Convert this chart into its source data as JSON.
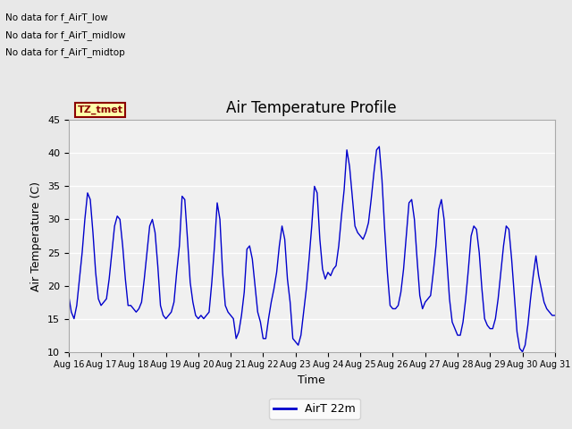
{
  "title": "Air Temperature Profile",
  "xlabel": "Time",
  "ylabel": "Air Temperature (C)",
  "ylim": [
    10,
    45
  ],
  "yticks": [
    10,
    15,
    20,
    25,
    30,
    35,
    40,
    45
  ],
  "line_color": "#0000cc",
  "legend_label": "AirT 22m",
  "no_data_lines": [
    "No data for f_AirT_low",
    "No data for f_AirT_midlow",
    "No data for f_AirT_midtop"
  ],
  "tz_tmet_label": "TZ_tmet",
  "bg_color": "#e8e8e8",
  "plot_bg_color": "#f0f0f0",
  "x_tick_labels": [
    "Aug 16",
    "Aug 17",
    "Aug 18",
    "Aug 19",
    "Aug 20",
    "Aug 21",
    "Aug 22",
    "Aug 23",
    "Aug 24",
    "Aug 25",
    "Aug 26",
    "Aug 27",
    "Aug 28",
    "Aug 29",
    "Aug 30",
    "Aug 31"
  ],
  "time_values": [
    0.0,
    0.083,
    0.167,
    0.25,
    0.333,
    0.417,
    0.5,
    0.583,
    0.667,
    0.75,
    0.833,
    0.917,
    1.0,
    1.083,
    1.167,
    1.25,
    1.333,
    1.417,
    1.5,
    1.583,
    1.667,
    1.75,
    1.833,
    1.917,
    2.0,
    2.083,
    2.167,
    2.25,
    2.333,
    2.417,
    2.5,
    2.583,
    2.667,
    2.75,
    2.833,
    2.917,
    3.0,
    3.083,
    3.167,
    3.25,
    3.333,
    3.417,
    3.5,
    3.583,
    3.667,
    3.75,
    3.833,
    3.917,
    4.0,
    4.083,
    4.167,
    4.25,
    4.333,
    4.417,
    4.5,
    4.583,
    4.667,
    4.75,
    4.833,
    4.917,
    5.0,
    5.083,
    5.167,
    5.25,
    5.333,
    5.417,
    5.5,
    5.583,
    5.667,
    5.75,
    5.833,
    5.917,
    6.0,
    6.083,
    6.167,
    6.25,
    6.333,
    6.417,
    6.5,
    6.583,
    6.667,
    6.75,
    6.833,
    6.917,
    7.0,
    7.083,
    7.167,
    7.25,
    7.333,
    7.417,
    7.5,
    7.583,
    7.667,
    7.75,
    7.833,
    7.917,
    8.0,
    8.083,
    8.167,
    8.25,
    8.333,
    8.417,
    8.5,
    8.583,
    8.667,
    8.75,
    8.833,
    8.917,
    9.0,
    9.083,
    9.167,
    9.25,
    9.333,
    9.417,
    9.5,
    9.583,
    9.667,
    9.75,
    9.833,
    9.917,
    10.0,
    10.083,
    10.167,
    10.25,
    10.333,
    10.417,
    10.5,
    10.583,
    10.667,
    10.75,
    10.833,
    10.917,
    11.0,
    11.083,
    11.167,
    11.25,
    11.333,
    11.417,
    11.5,
    11.583,
    11.667,
    11.75,
    11.833,
    11.917,
    12.0,
    12.083,
    12.167,
    12.25,
    12.333,
    12.417,
    12.5,
    12.583,
    12.667,
    12.75,
    12.833,
    12.917,
    13.0,
    13.083,
    13.167,
    13.25,
    13.333,
    13.417,
    13.5,
    13.583,
    13.667,
    13.75,
    13.833,
    13.917,
    14.0,
    14.083,
    14.167,
    14.25,
    14.333,
    14.417,
    14.5,
    14.583,
    14.667,
    14.75,
    14.833,
    14.917,
    15.0
  ],
  "temp_values": [
    18.5,
    16.0,
    15.0,
    17.0,
    21.0,
    25.0,
    30.0,
    34.0,
    33.0,
    28.0,
    22.0,
    18.0,
    17.0,
    17.5,
    18.0,
    21.0,
    25.0,
    29.0,
    30.5,
    30.0,
    26.0,
    21.0,
    17.0,
    17.0,
    16.5,
    16.0,
    16.5,
    17.5,
    21.0,
    25.0,
    29.0,
    30.0,
    28.0,
    23.0,
    17.0,
    15.5,
    15.0,
    15.5,
    16.0,
    17.5,
    22.0,
    26.0,
    33.5,
    33.0,
    27.0,
    20.5,
    17.5,
    15.5,
    15.0,
    15.5,
    15.0,
    15.5,
    16.0,
    20.5,
    26.0,
    32.5,
    30.0,
    22.0,
    17.0,
    16.0,
    15.5,
    15.0,
    12.0,
    13.0,
    15.5,
    19.0,
    25.5,
    26.0,
    24.0,
    20.0,
    16.0,
    14.5,
    12.0,
    12.0,
    15.0,
    17.5,
    19.5,
    22.0,
    26.0,
    29.0,
    27.0,
    21.0,
    17.5,
    12.0,
    11.5,
    11.0,
    12.5,
    16.0,
    19.5,
    24.0,
    29.0,
    35.0,
    34.0,
    27.0,
    22.5,
    21.0,
    22.0,
    21.5,
    22.5,
    23.0,
    26.0,
    30.5,
    34.5,
    40.5,
    38.0,
    33.5,
    29.0,
    28.0,
    27.5,
    27.0,
    28.0,
    29.5,
    33.0,
    37.0,
    40.5,
    41.0,
    36.0,
    28.5,
    22.0,
    17.0,
    16.5,
    16.5,
    17.0,
    19.0,
    22.5,
    27.5,
    32.5,
    33.0,
    30.0,
    24.0,
    18.5,
    16.5,
    17.5,
    18.0,
    18.5,
    22.0,
    26.0,
    31.5,
    33.0,
    30.0,
    24.0,
    18.0,
    14.5,
    13.5,
    12.5,
    12.5,
    14.5,
    18.0,
    22.5,
    27.5,
    29.0,
    28.5,
    25.0,
    19.5,
    15.0,
    14.0,
    13.5,
    13.5,
    15.0,
    18.0,
    22.0,
    26.0,
    29.0,
    28.5,
    24.0,
    18.5,
    13.0,
    10.5,
    10.0,
    11.0,
    14.0,
    18.0,
    21.5,
    24.5,
    21.5,
    19.5,
    17.5,
    16.5,
    16.0,
    15.5,
    15.5
  ]
}
